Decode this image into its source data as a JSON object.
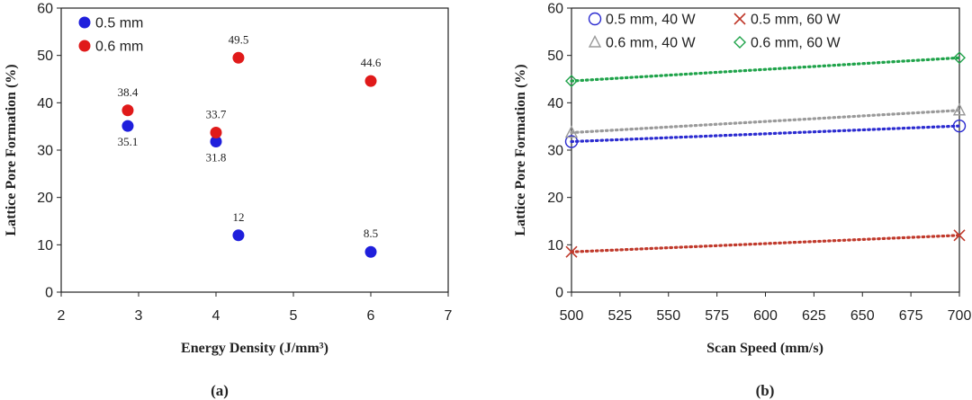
{
  "chart_data": [
    {
      "type": "scatter",
      "panel_label": "(a)",
      "xlabel": "Energy Density (J/mm³)",
      "ylabel": "Lattice Pore Formation (%)",
      "xlim": [
        2,
        7
      ],
      "ylim": [
        0,
        60
      ],
      "xticks": [
        "2",
        "3",
        "4",
        "5",
        "6",
        "7"
      ],
      "yticks": [
        "0",
        "10",
        "20",
        "30",
        "40",
        "50",
        "60"
      ],
      "legend_position": "top-left",
      "series": [
        {
          "name": "0.5 mm",
          "color": "#1f1fdc",
          "marker": "filled-circle",
          "points": [
            {
              "x": 2.86,
              "y": 35.1,
              "label": "35.1",
              "label_side": "below"
            },
            {
              "x": 4.0,
              "y": 31.8,
              "label": "31.8",
              "label_side": "below"
            },
            {
              "x": 4.29,
              "y": 12.0,
              "label": "12",
              "label_side": "above"
            },
            {
              "x": 6.0,
              "y": 8.5,
              "label": "8.5",
              "label_side": "above"
            }
          ]
        },
        {
          "name": "0.6 mm",
          "color": "#e01a1a",
          "marker": "filled-circle",
          "points": [
            {
              "x": 2.86,
              "y": 38.4,
              "label": "38.4",
              "label_side": "above"
            },
            {
              "x": 4.0,
              "y": 33.7,
              "label": "33.7",
              "label_side": "above"
            },
            {
              "x": 4.29,
              "y": 49.5,
              "label": "49.5",
              "label_side": "above"
            },
            {
              "x": 6.0,
              "y": 44.6,
              "label": "44.6",
              "label_side": "above"
            }
          ]
        }
      ]
    },
    {
      "type": "scatter",
      "panel_label": "(b)",
      "xlabel": "Scan Speed (mm/s)",
      "ylabel": "Lattice Pore Formation (%)",
      "xlim": [
        500,
        700
      ],
      "ylim": [
        0,
        60
      ],
      "xticks": [
        "500",
        "525",
        "550",
        "575",
        "600",
        "625",
        "650",
        "675",
        "700"
      ],
      "yticks": [
        "0",
        "10",
        "20",
        "30",
        "40",
        "50",
        "60"
      ],
      "legend_position": "top",
      "trendlines": "dotted linear",
      "series": [
        {
          "name": "0.5 mm, 40 W",
          "color": "#2b2bd0",
          "marker": "open-circle",
          "points": [
            {
              "x": 500,
              "y": 31.8
            },
            {
              "x": 700,
              "y": 35.1
            }
          ]
        },
        {
          "name": "0.5 mm, 60 W",
          "color": "#c0392b",
          "marker": "cross",
          "points": [
            {
              "x": 500,
              "y": 8.5
            },
            {
              "x": 700,
              "y": 12.0
            }
          ]
        },
        {
          "name": "0.6 mm, 40 W",
          "color": "#9a9a9a",
          "marker": "open-triangle",
          "points": [
            {
              "x": 500,
              "y": 33.7
            },
            {
              "x": 700,
              "y": 38.4
            }
          ]
        },
        {
          "name": "0.6 mm, 60 W",
          "color": "#1fa34a",
          "marker": "open-diamond",
          "points": [
            {
              "x": 500,
              "y": 44.6
            },
            {
              "x": 700,
              "y": 49.5
            }
          ]
        }
      ]
    }
  ]
}
